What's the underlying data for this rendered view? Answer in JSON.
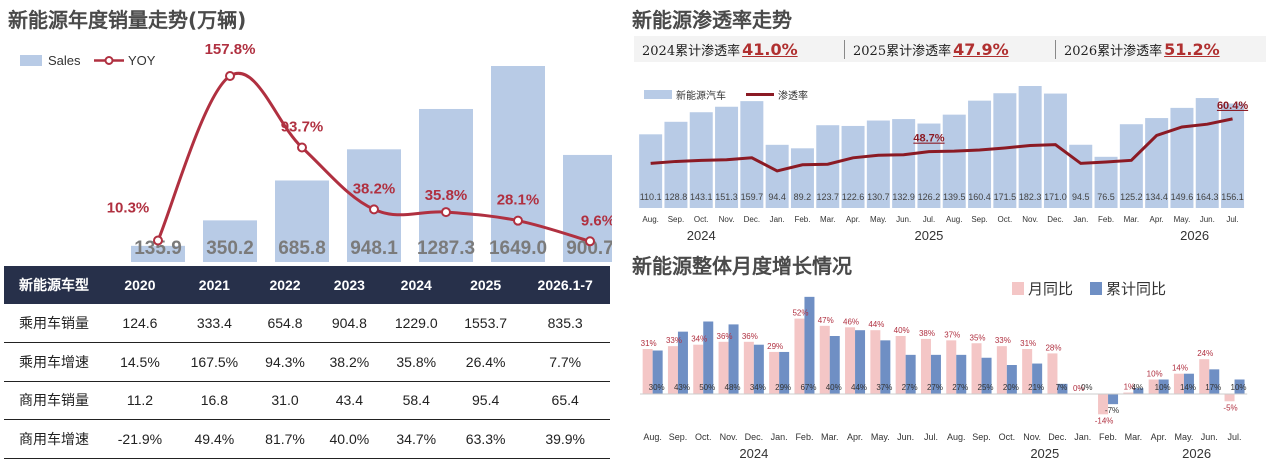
{
  "left": {
    "title": "新能源年度销量走势(万辆)",
    "legend_sales": "Sales",
    "legend_yoy": "YOY",
    "table": {
      "header": [
        "新能源车型",
        "2020",
        "2021",
        "2022",
        "2023",
        "2024",
        "2025",
        "2026.1-7"
      ],
      "rows": [
        [
          "乘用车销量",
          "124.6",
          "333.4",
          "654.8",
          "904.8",
          "1229.0",
          "1553.7",
          "835.3"
        ],
        [
          "乘用车增速",
          "14.5%",
          "167.5%",
          "94.3%",
          "38.2%",
          "35.8%",
          "26.4%",
          "7.7%"
        ],
        [
          "商用车销量",
          "11.2",
          "16.8",
          "31.0",
          "43.4",
          "58.4",
          "95.4",
          "65.4"
        ],
        [
          "商用车增速",
          "-21.9%",
          "49.4%",
          "81.7%",
          "40.0%",
          "34.7%",
          "63.3%",
          "39.9%"
        ]
      ]
    }
  },
  "right_top": {
    "title": "新能源渗透率走势",
    "summary": [
      {
        "label": "2024累计渗透率",
        "value": "41.0%"
      },
      {
        "label": "2025累计渗透率",
        "value": "47.9%"
      },
      {
        "label": "2026累计渗透率",
        "value": "51.2%"
      }
    ],
    "legend_bar": "新能源汽车",
    "legend_line": "渗透率",
    "years": [
      "2024",
      "2025",
      "2026"
    ]
  },
  "right_bottom": {
    "title": "新能源整体月度增长情况",
    "legend_mom": "月同比",
    "legend_cum": "累计同比",
    "years": [
      "2024",
      "2025",
      "2026"
    ]
  },
  "colors": {
    "bar_blue": "#b8cbe6",
    "line_red": "#b03040",
    "dark_red": "#8b1a24",
    "pink": "#f4c6c6",
    "steel_blue": "#6f8fc4",
    "table_header": "#27304a"
  },
  "chart_data": [
    {
      "type": "bar",
      "title": "新能源年度销量走势(万辆)",
      "categories": [
        "2020",
        "2021",
        "2022",
        "2023",
        "2024",
        "2025",
        "2026.1-7"
      ],
      "series": [
        {
          "name": "Sales",
          "type": "bar",
          "values": [
            135.9,
            350.2,
            685.8,
            948.1,
            1287.3,
            1649.0,
            900.7
          ],
          "labels": [
            "135.9",
            "350.2",
            "685.8",
            "948.1",
            "1287.3",
            "1649.0",
            "900.7"
          ]
        },
        {
          "name": "YOY",
          "type": "line",
          "values": [
            10.3,
            157.8,
            93.7,
            38.2,
            35.8,
            28.1,
            9.6
          ],
          "labels": [
            "10.3%",
            "157.8%",
            "93.7%",
            "38.2%",
            "35.8%",
            "28.1%",
            "9.6%"
          ]
        }
      ]
    },
    {
      "type": "bar",
      "title": "新能源渗透率走势",
      "categories": [
        "Aug.",
        "Sep.",
        "Oct.",
        "Nov.",
        "Dec.",
        "Jan.",
        "Feb.",
        "Mar.",
        "Apr.",
        "May.",
        "Jun.",
        "Jul.",
        "Aug.",
        "Sep.",
        "Oct.",
        "Nov.",
        "Dec.",
        "Jan.",
        "Feb.",
        "Mar.",
        "Apr.",
        "May.",
        "Jun.",
        "Jul."
      ],
      "series": [
        {
          "name": "新能源汽车",
          "type": "bar",
          "values": [
            110.1,
            128.8,
            143.1,
            151.3,
            159.7,
            94.4,
            89.2,
            123.7,
            122.6,
            130.7,
            132.9,
            126.2,
            139.5,
            160.4,
            171.5,
            182.3,
            171.0,
            94.5,
            76.5,
            125.2,
            134.4,
            149.6,
            164.3,
            156.1
          ],
          "labels": [
            "110.1",
            "128.8",
            "143.1",
            "151.3",
            "159.7",
            "94.4",
            "89.2",
            "123.7",
            "122.6",
            "130.7",
            "132.9",
            "126.2",
            "139.5",
            "160.4",
            "171.5",
            "182.3",
            "171.0",
            "94.5",
            "76.5",
            "125.2",
            "134.4",
            "149.6",
            "164.3",
            "156.1"
          ]
        },
        {
          "name": "渗透率",
          "type": "line",
          "values": [
            44.5,
            45.2,
            45.6,
            45.8,
            46.5,
            41.8,
            44.0,
            44.2,
            46.5,
            47.4,
            47.6,
            48.7,
            48.9,
            49.3,
            50.0,
            50.9,
            51.2,
            44.5,
            45.0,
            45.6,
            54.5,
            57.5,
            58.5,
            60.4
          ],
          "labels": {
            "11": "48.7%",
            "23": "60.4%"
          }
        }
      ]
    },
    {
      "type": "bar",
      "title": "新能源整体月度增长情况",
      "categories": [
        "Aug.",
        "Sep.",
        "Oct.",
        "Nov.",
        "Dec.",
        "Jan.",
        "Feb.",
        "Mar.",
        "Apr.",
        "May.",
        "Jun.",
        "Jul.",
        "Aug.",
        "Sep.",
        "Oct.",
        "Nov.",
        "Dec.",
        "Jan.",
        "Feb.",
        "Mar.",
        "Apr.",
        "May.",
        "Jun.",
        "Jul."
      ],
      "series": [
        {
          "name": "月同比",
          "values": [
            31,
            33,
            34,
            36,
            36,
            29,
            52,
            47,
            46,
            44,
            40,
            38,
            37,
            35,
            33,
            31,
            28,
            0,
            -14,
            1,
            10,
            14,
            24,
            -5
          ],
          "labels": [
            "31%",
            "33%",
            "34%",
            "36%",
            "36%",
            "29%",
            "52%",
            "47%",
            "46%",
            "44%",
            "40%",
            "38%",
            "37%",
            "35%",
            "33%",
            "31%",
            "28%",
            "0%",
            "-14%",
            "1%",
            "10%",
            "14%",
            "24%",
            "-5%"
          ]
        },
        {
          "name": "累计同比",
          "values": [
            30,
            43,
            50,
            48,
            34,
            29,
            67,
            40,
            44,
            37,
            27,
            27,
            27,
            25,
            20,
            21,
            7,
            0,
            -7,
            4,
            10,
            14,
            17,
            10
          ],
          "labels": [
            "30%",
            "43%",
            "50%",
            "48%",
            "34%",
            "29%",
            "67%",
            "40%",
            "44%",
            "37%",
            "27%",
            "27%",
            "27%",
            "25%",
            "20%",
            "21%",
            "7%",
            "0%",
            "-7%",
            "4%",
            "10%",
            "14%",
            "17%",
            "10%"
          ]
        }
      ]
    }
  ]
}
